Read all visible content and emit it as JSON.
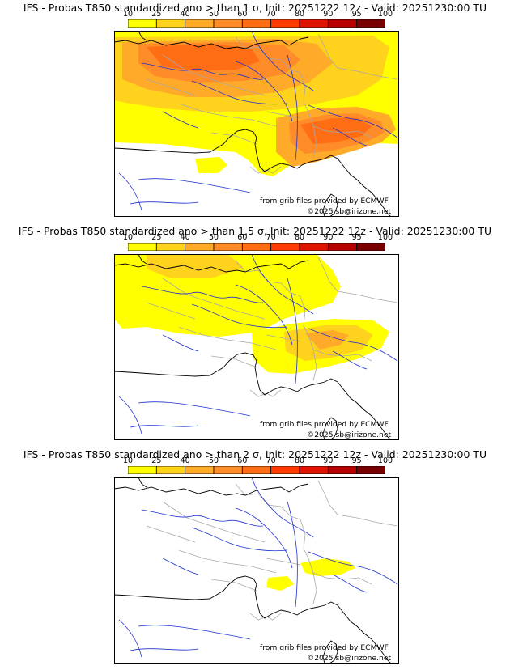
{
  "panels": [
    {
      "title": "IFS - Probas T850  standardized ano > than 1 σ, Init: 20251222 12z - Valid: 20251230:00 TU",
      "threshold": "1 σ"
    },
    {
      "title": "IFS - Probas T850  standardized ano > than 1.5 σ, Init: 20251222 12z - Valid: 20251230:00 TU",
      "threshold": "1.5 σ"
    },
    {
      "title": "IFS - Probas T850  standardized ano > than 2 σ, Init: 20251222 12z - Valid: 20251230:00 TU",
      "threshold": "2 σ"
    }
  ],
  "colorbar": {
    "ticks": [
      "10",
      "25",
      "40",
      "50",
      "60",
      "70",
      "80",
      "90",
      "95",
      "100"
    ],
    "colors": [
      "#ffff00",
      "#ffd21e",
      "#ffaa28",
      "#ff8c28",
      "#ff6e14",
      "#ff3c00",
      "#dc1400",
      "#b40000",
      "#780000"
    ]
  },
  "map": {
    "credit_source": "from grib files provided by ECMWF",
    "credit_copyright": "©2025 sb@irizone.net",
    "colors": {
      "frame": "#000000",
      "coast": "#000000",
      "rivers": "#1f2fd0",
      "borders": "#a8a8a8",
      "ocean": "#ffffff"
    }
  }
}
